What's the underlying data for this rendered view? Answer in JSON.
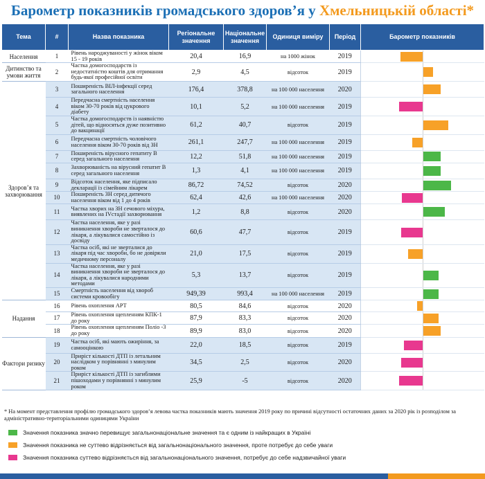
{
  "title": {
    "part1": "Барометр показників громадського здоров’я у ",
    "part2": "Хмельницькій області",
    "star": "*"
  },
  "headers": {
    "theme": "Тема",
    "num": "#",
    "name": "Назва показника",
    "regional": "Регіональне значення",
    "national": "Національне значення",
    "unit": "Одиниця виміру",
    "period": "Період",
    "barometer": "Барометр показників"
  },
  "colors": {
    "green": "#4cb748",
    "orange": "#f7a128",
    "pink": "#e8388f",
    "header": "#2a5ea0"
  },
  "categories": [
    {
      "label": "Населення",
      "rows": 1
    },
    {
      "label": "Дитинство та умови життя",
      "rows": 1
    },
    {
      "label": "Здоров’я та захворювання",
      "rows": 13
    },
    {
      "label": "Надання",
      "rows": 3
    },
    {
      "label": "Фактори ризику",
      "rows": 3
    }
  ],
  "rows": [
    {
      "num": "1",
      "name": "Рівень народжуваності у жінок віком 15 - 19 років",
      "regional": "20,4",
      "national": "16,9",
      "unit": "на 1000 жінок",
      "period": "2019",
      "color": "orange",
      "bar": -0.32
    },
    {
      "num": "2",
      "name": "Частка домогосподарств із недостатністю коштів для отримання будь-якої професійної освіти",
      "regional": "2,9",
      "national": "4,5",
      "unit": "відсоток",
      "period": "2019",
      "color": "orange",
      "bar": 0.14
    },
    {
      "num": "3",
      "name": "Поширеність ВІЛ-інфекції серед загального населення",
      "regional": "176,4",
      "national": "378,8",
      "unit": "на 100 000 населення",
      "period": "2020",
      "color": "orange",
      "bar": 0.25
    },
    {
      "num": "4",
      "name": "Передчасна смертність населення віком 30-70 років від цукрового діабету",
      "regional": "10,1",
      "national": "5,2",
      "unit": "на 100 000 населення",
      "period": "2019",
      "color": "pink",
      "bar": -0.34
    },
    {
      "num": "5",
      "name": "Частка домогосподарств із наявністю дітей, що відносяться дуже позитивно до вакцинації",
      "regional": "61,2",
      "national": "40,7",
      "unit": "відсоток",
      "period": "2019",
      "color": "orange",
      "bar": 0.36
    },
    {
      "num": "6",
      "name": "Передчасна смертність чоловічого населення віком 30-70 років від ЗН",
      "regional": "261,1",
      "national": "247,7",
      "unit": "на 100 000 населення",
      "period": "2019",
      "color": "orange",
      "bar": -0.15
    },
    {
      "num": "7",
      "name": "Поширеність вірусного гепатиту В серед загального населення",
      "regional": "12,2",
      "national": "51,8",
      "unit": "на 100 000 населення",
      "period": "2019",
      "color": "green",
      "bar": 0.25
    },
    {
      "num": "8",
      "name": "Захворюваність на вірусний гепатит В серед загального населення",
      "regional": "1,3",
      "national": "4,1",
      "unit": "на 100 000 населення",
      "period": "2019",
      "color": "green",
      "bar": 0.25
    },
    {
      "num": "9",
      "name": "Відсоток населення, яке підписало декларації із сімейним лікарем",
      "regional": "86,72",
      "national": "74,52",
      "unit": "відсоток",
      "period": "2020",
      "color": "green",
      "bar": 0.4
    },
    {
      "num": "10",
      "name": "Поширеність ЗН серед дитячого населення віком від 1 до 4 років",
      "regional": "62,4",
      "national": "42,6",
      "unit": "на 100 000 населення",
      "period": "2020",
      "color": "pink",
      "bar": -0.3
    },
    {
      "num": "11",
      "name": "Частка хворих на ЗН сечового міхура, виявлених на IVстадії захворювання",
      "regional": "1,2",
      "national": "8,8",
      "unit": "відсоток",
      "period": "2020",
      "color": "green",
      "bar": 0.31
    },
    {
      "num": "12",
      "name": "Частка населення, яке у разі виникнення хвороби не зверталося до лікаря, а лікувалися самостійно із досвіду",
      "regional": "60,6",
      "national": "47,7",
      "unit": "відсоток",
      "period": "2019",
      "color": "pink",
      "bar": -0.31
    },
    {
      "num": "13",
      "name": "Частка осіб, які не зверталися до лікаря під час хвороби, бо не довіряли медичному персоналу",
      "regional": "21,0",
      "national": "17,5",
      "unit": "відсоток",
      "period": "2019",
      "color": "orange",
      "bar": -0.21
    },
    {
      "num": "14",
      "name": "Частка населення, яке у разі виникнення хвороби не зверталося до лікаря, а лікувалися народними методами",
      "regional": "5,3",
      "national": "13,7",
      "unit": "відсоток",
      "period": "2019",
      "color": "green",
      "bar": 0.22
    },
    {
      "num": "15",
      "name": "Смертність населення від хвороб системи кровообігу",
      "regional": "949,39",
      "national": "993,4",
      "unit": "на 100 000 населення",
      "period": "2019",
      "color": "green",
      "bar": 0.22
    },
    {
      "num": "16",
      "name": "Рівень охоплення АРТ",
      "regional": "80,5",
      "national": "84,6",
      "unit": "відсоток",
      "period": "2020",
      "color": "orange",
      "bar": -0.08
    },
    {
      "num": "17",
      "name": "Рівень охоплення щепленням КПК-1 до року",
      "regional": "87,9",
      "national": "83,3",
      "unit": "відсоток",
      "period": "2020",
      "color": "orange",
      "bar": 0.22
    },
    {
      "num": "18",
      "name": "Рівень охоплення щепленням Поліо -3 до року",
      "regional": "89,9",
      "national": "83,0",
      "unit": "відсоток",
      "period": "2020",
      "color": "orange",
      "bar": 0.25
    },
    {
      "num": "19",
      "name": "Частка осіб, які мають ожиріння, за самооцінкою",
      "regional": "22,0",
      "national": "18,5",
      "unit": "відсоток",
      "period": "2019",
      "color": "pink",
      "bar": -0.27
    },
    {
      "num": "20",
      "name": "Приріст кількості ДТП із летальним наслідком у порівнянні з минулим роком",
      "regional": "34,5",
      "national": "2,5",
      "unit": "відсоток",
      "period": "2020",
      "color": "pink",
      "bar": -0.31
    },
    {
      "num": "21",
      "name": "Приріст кількості ДТП із загиблими пішоходами у порівнянні з минулим роком",
      "regional": "25,9",
      "national": "-5",
      "unit": "відсоток",
      "period": "2020",
      "color": "pink",
      "bar": -0.34
    }
  ],
  "footnote": "* На момент представлення профілю громадського здоров’я левова частка показників мають значення 2019 року по причині відсутності остаточних даних за 2020 рік із розподілом за адміністративно-територіальними одиницями України",
  "legend": [
    {
      "color": "green",
      "label": "Значення показника значно перевищує загальнонаціональне значення та є одним із найкращих в Україні"
    },
    {
      "color": "orange",
      "label": "Значення показника не суттево відрізняється від загальнонаціонального значення, проте потребує до себе уваги"
    },
    {
      "color": "pink",
      "label": "Значення показника суттево відрізняється від загальнонаціонального значення, потребує до себе надзвичайної уваги"
    }
  ]
}
